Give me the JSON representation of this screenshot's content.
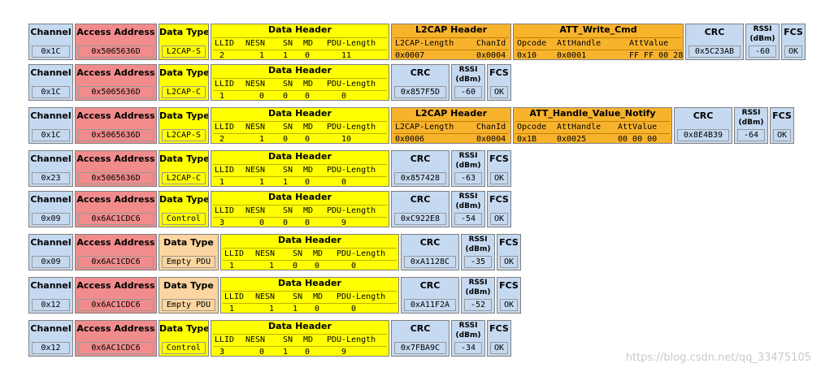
{
  "labels": {
    "channel": "Channel",
    "access_address": "Access Address",
    "data_type": "Data Type",
    "data_header": "Data Header",
    "l2cap_header": "L2CAP Header",
    "crc": "CRC",
    "rssi_line1": "RSSI",
    "rssi_line2": "(dBm)",
    "fcs": "FCS",
    "llid": "LLID",
    "nesn": "NESN",
    "sn": "SN",
    "md": "MD",
    "pdu_length": "PDU-Length",
    "l2cap_length": "L2CAP-Length",
    "chan_id": "ChanId",
    "opcode": "Opcode",
    "att_handle": "AttHandle",
    "att_value": "AttValue"
  },
  "rows": [
    {
      "channel": "0x1C",
      "access_address": "0x5065636D",
      "data_type": "L2CAP-S",
      "header": {
        "llid": "2",
        "nesn": "1",
        "sn": "1",
        "md": "0",
        "pdu_length": "11"
      },
      "l2cap": {
        "length": "0x0007",
        "chan_id": "0x0004"
      },
      "att": {
        "title": "ATT_Write_Cmd",
        "opcode": "0x10",
        "handle": "0x0001",
        "value": "FF FF 00 28"
      },
      "crc": "0x5C23AB",
      "rssi": "-60",
      "fcs": "OK"
    },
    {
      "channel": "0x1C",
      "access_address": "0x5065636D",
      "data_type": "L2CAP-C",
      "header": {
        "llid": "1",
        "nesn": "0",
        "sn": "0",
        "md": "0",
        "pdu_length": "0"
      },
      "crc": "0x857F5D",
      "rssi": "-60",
      "fcs": "OK"
    },
    {
      "channel": "0x1C",
      "access_address": "0x5065636D",
      "data_type": "L2CAP-S",
      "header": {
        "llid": "2",
        "nesn": "1",
        "sn": "0",
        "md": "0",
        "pdu_length": "10"
      },
      "l2cap": {
        "length": "0x0006",
        "chan_id": "0x0004"
      },
      "att": {
        "title": "ATT_Handle_Value_Notify",
        "opcode": "0x1B",
        "handle": "0x0025",
        "value": "00 00 00"
      },
      "crc": "0x8E4B39",
      "rssi": "-64",
      "fcs": "OK"
    },
    {
      "channel": "0x23",
      "access_address": "0x5065636D",
      "data_type": "L2CAP-C",
      "header": {
        "llid": "1",
        "nesn": "1",
        "sn": "1",
        "md": "0",
        "pdu_length": "0"
      },
      "crc": "0x857428",
      "rssi": "-63",
      "fcs": "OK"
    },
    {
      "channel": "0x09",
      "access_address": "0x6AC1CDC6",
      "data_type": "Control",
      "header": {
        "llid": "3",
        "nesn": "0",
        "sn": "0",
        "md": "0",
        "pdu_length": "9"
      },
      "crc": "0xC922E8",
      "rssi": "-54",
      "fcs": "OK"
    },
    {
      "channel": "0x09",
      "access_address": "0x6AC1CDC6",
      "data_type": "Empty PDU",
      "header": {
        "llid": "1",
        "nesn": "1",
        "sn": "0",
        "md": "0",
        "pdu_length": "0"
      },
      "crc": "0xA1128C",
      "rssi": "-35",
      "fcs": "OK"
    },
    {
      "channel": "0x12",
      "access_address": "0x6AC1CDC6",
      "data_type": "Empty PDU",
      "header": {
        "llid": "1",
        "nesn": "1",
        "sn": "1",
        "md": "0",
        "pdu_length": "0"
      },
      "crc": "0xA11F2A",
      "rssi": "-52",
      "fcs": "OK"
    },
    {
      "channel": "0x12",
      "access_address": "0x6AC1CDC6",
      "data_type": "Control",
      "header": {
        "llid": "3",
        "nesn": "0",
        "sn": "1",
        "md": "0",
        "pdu_length": "9"
      },
      "crc": "0x7FBA9C",
      "rssi": "-34",
      "fcs": "OK"
    }
  ],
  "watermark": "https://blog.csdn.net/qq_33475105",
  "colors": {
    "channel": "#c5d9f1",
    "access_address": "#f28c8c",
    "data_type": "#ffff00",
    "data_type_empty": "#fcd5a0",
    "data_header": "#ffff00",
    "l2cap": "#f8b32d",
    "att": "#f8b32d",
    "crc": "#c5d9f1"
  }
}
